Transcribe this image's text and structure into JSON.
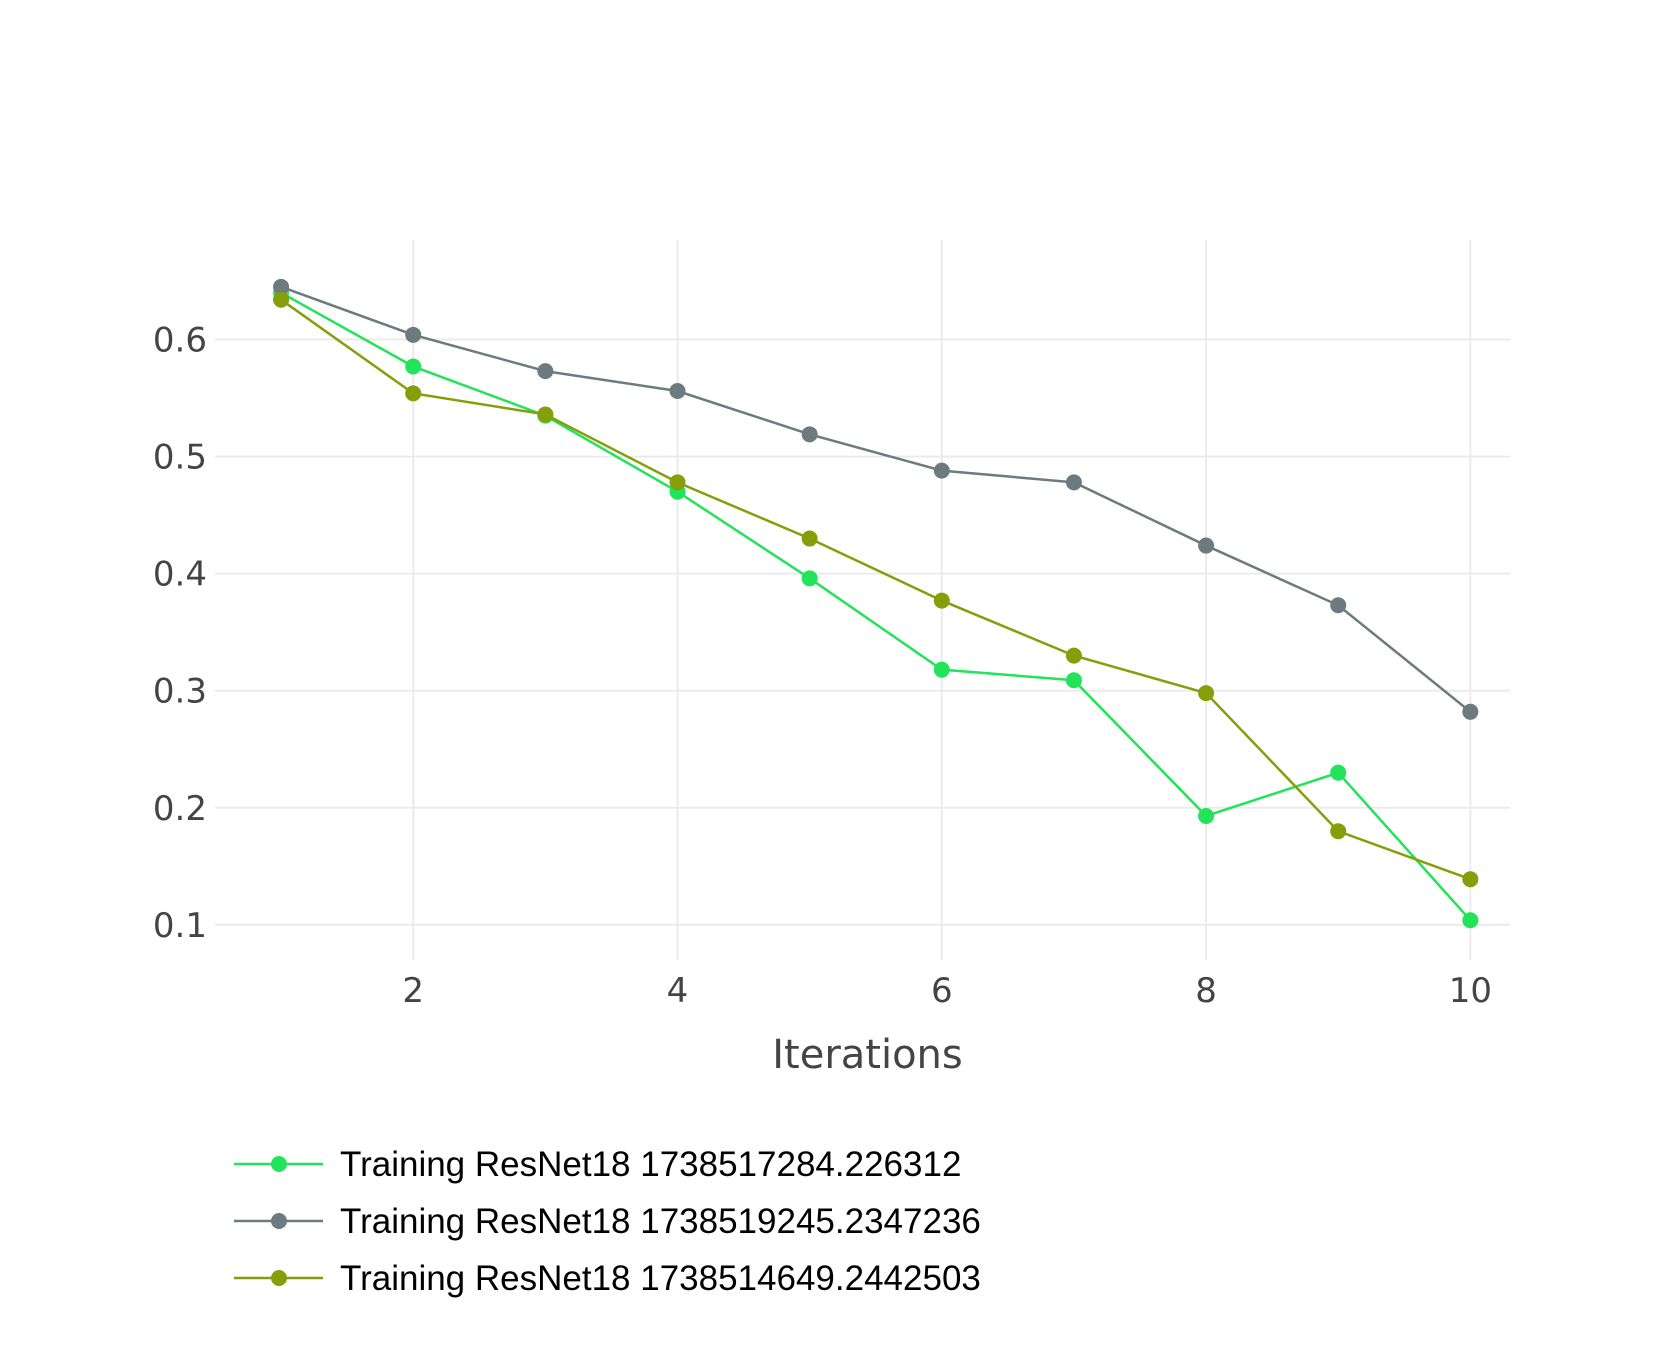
{
  "chart_data": {
    "type": "line",
    "title": "",
    "xlabel": "Iterations",
    "ylabel": "",
    "xlim": [
      0.5,
      10.3
    ],
    "ylim": [
      0.07,
      0.685
    ],
    "grid": true,
    "legend_position": "bottom-left",
    "x": [
      1,
      2,
      3,
      4,
      5,
      6,
      7,
      8,
      9,
      10
    ],
    "x_ticks": [
      2,
      4,
      6,
      8,
      10
    ],
    "x_tick_labels": [
      "2",
      "4",
      "6",
      "8",
      "10"
    ],
    "y_ticks": [
      0.1,
      0.2,
      0.3,
      0.4,
      0.5,
      0.6
    ],
    "y_tick_labels": [
      "0.1",
      "0.2",
      "0.3",
      "0.4",
      "0.5",
      "0.6"
    ],
    "series": [
      {
        "name": "Training ResNet18 1738517284.226312",
        "color": "#22e35a",
        "values": [
          0.64,
          0.577,
          0.535,
          0.47,
          0.396,
          0.318,
          0.309,
          0.193,
          0.23,
          0.104
        ]
      },
      {
        "name": "Training ResNet18 1738519245.2347236",
        "color": "#6b7b80",
        "values": [
          0.645,
          0.604,
          0.573,
          0.556,
          0.519,
          0.488,
          0.478,
          0.424,
          0.373,
          0.282
        ]
      },
      {
        "name": "Training ResNet18 1738514649.2442503",
        "color": "#859e0a",
        "values": [
          0.634,
          0.554,
          0.536,
          0.478,
          0.43,
          0.377,
          0.33,
          0.298,
          0.18,
          0.139
        ]
      }
    ]
  }
}
